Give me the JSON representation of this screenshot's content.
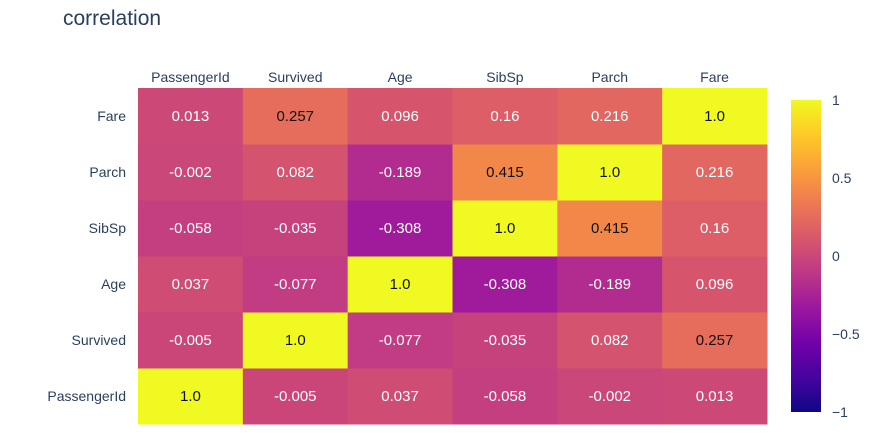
{
  "chart_data": {
    "type": "heatmap",
    "title": "correlation",
    "x": [
      "PassengerId",
      "Survived",
      "Age",
      "SibSp",
      "Parch",
      "Fare"
    ],
    "y": [
      "PassengerId",
      "Survived",
      "Age",
      "SibSp",
      "Parch",
      "Fare"
    ],
    "z": [
      [
        1.0,
        -0.005,
        0.037,
        -0.058,
        -0.002,
        0.013
      ],
      [
        -0.005,
        1.0,
        -0.077,
        -0.035,
        0.082,
        0.257
      ],
      [
        0.037,
        -0.077,
        1.0,
        -0.308,
        -0.189,
        0.096
      ],
      [
        -0.058,
        -0.035,
        -0.308,
        1.0,
        0.415,
        0.16
      ],
      [
        -0.002,
        0.082,
        -0.189,
        0.415,
        1.0,
        0.216
      ],
      [
        0.013,
        0.257,
        0.096,
        0.16,
        0.216,
        1.0
      ]
    ],
    "cell_text": [
      [
        "1.0",
        "-0.005",
        "0.037",
        "-0.058",
        "-0.002",
        "0.013"
      ],
      [
        "-0.005",
        "1.0",
        "-0.077",
        "-0.035",
        "0.082",
        "0.257"
      ],
      [
        "0.037",
        "-0.077",
        "1.0",
        "-0.308",
        "-0.189",
        "0.096"
      ],
      [
        "-0.058",
        "-0.035",
        "-0.308",
        "1.0",
        "0.415",
        "0.16"
      ],
      [
        "-0.002",
        "0.082",
        "-0.189",
        "0.415",
        "1.0",
        "0.216"
      ],
      [
        "0.013",
        "0.257",
        "0.096",
        "0.16",
        "0.216",
        "1.0"
      ]
    ],
    "x_axis_position": "top",
    "zlim": [
      -1,
      1
    ],
    "colorscale": "plasma",
    "colorbar_ticks": [
      {
        "value": 1,
        "label": "1"
      },
      {
        "value": 0.5,
        "label": "0.5"
      },
      {
        "value": 0,
        "label": "0"
      },
      {
        "value": -0.5,
        "label": "−0.5"
      },
      {
        "value": -1,
        "label": "−1"
      }
    ]
  }
}
